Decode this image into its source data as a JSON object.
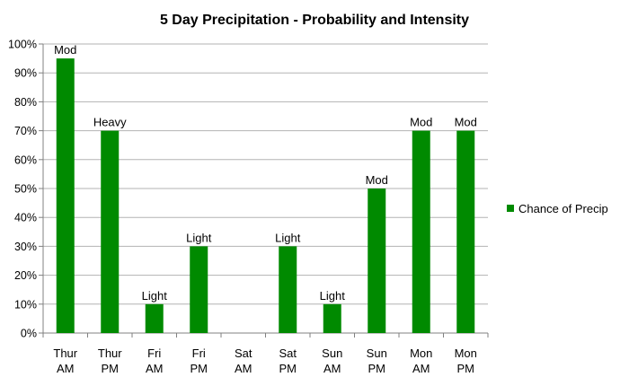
{
  "chart_data": {
    "type": "bar",
    "title": "5 Day Precipitation - Probability and Intensity",
    "categories": [
      [
        "Thur",
        "AM"
      ],
      [
        "Thur",
        "PM"
      ],
      [
        "Fri",
        "AM"
      ],
      [
        "Fri",
        "PM"
      ],
      [
        "Sat",
        "AM"
      ],
      [
        "Sat",
        "PM"
      ],
      [
        "Sun",
        "AM"
      ],
      [
        "Sun",
        "PM"
      ],
      [
        "Mon",
        "AM"
      ],
      [
        "Mon",
        "PM"
      ]
    ],
    "series": [
      {
        "name": "Chance of Precip",
        "color": "#008a00",
        "values": [
          95,
          70,
          10,
          30,
          0,
          30,
          10,
          50,
          70,
          70
        ],
        "labels": [
          "Mod",
          "Heavy",
          "Light",
          "Light",
          "",
          "Light",
          "Light",
          "Mod",
          "Mod",
          "Mod"
        ]
      }
    ],
    "ylim": [
      0,
      100
    ],
    "yticks": [
      0,
      10,
      20,
      30,
      40,
      50,
      60,
      70,
      80,
      90,
      100
    ],
    "ytick_suffix": "%",
    "grid": true,
    "legend": "right",
    "xlabel": "",
    "ylabel": ""
  }
}
